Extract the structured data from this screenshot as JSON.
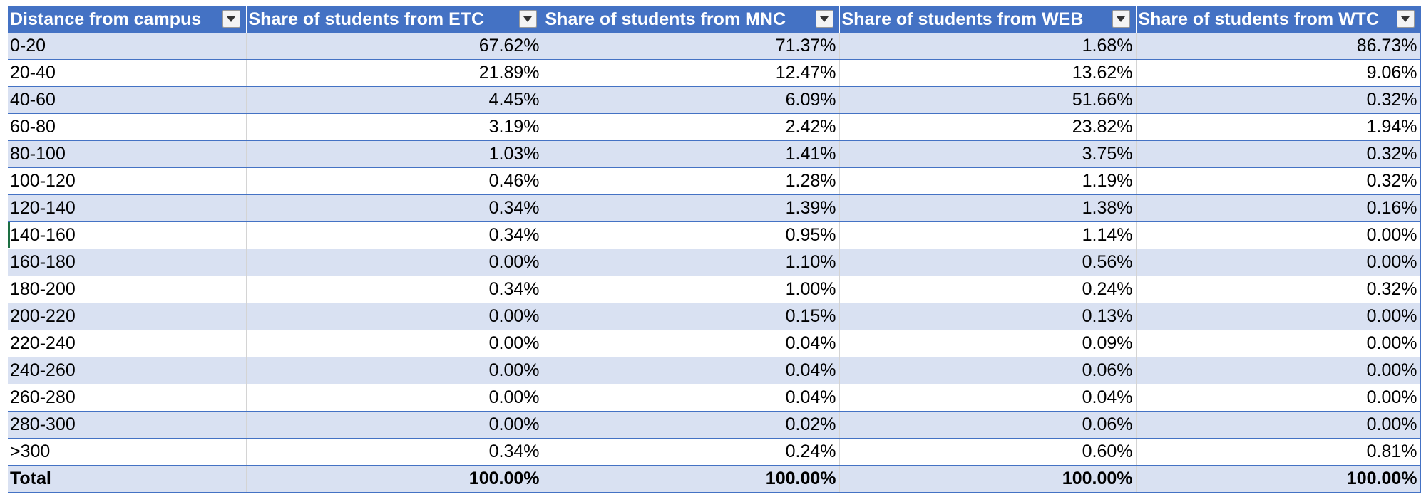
{
  "table": {
    "headers": [
      "Distance from campus",
      "Share of students from ETC",
      "Share of students from MNC",
      "Share of students from WEB",
      "Share of students from WTC"
    ],
    "rows": [
      {
        "label": "0-20",
        "values": [
          "67.62%",
          "71.37%",
          "1.68%",
          "86.73%"
        ]
      },
      {
        "label": "20-40",
        "values": [
          "21.89%",
          "12.47%",
          "13.62%",
          "9.06%"
        ]
      },
      {
        "label": "40-60",
        "values": [
          "4.45%",
          "6.09%",
          "51.66%",
          "0.32%"
        ]
      },
      {
        "label": "60-80",
        "values": [
          "3.19%",
          "2.42%",
          "23.82%",
          "1.94%"
        ]
      },
      {
        "label": "80-100",
        "values": [
          "1.03%",
          "1.41%",
          "3.75%",
          "0.32%"
        ]
      },
      {
        "label": "100-120",
        "values": [
          "0.46%",
          "1.28%",
          "1.19%",
          "0.32%"
        ]
      },
      {
        "label": "120-140",
        "values": [
          "0.34%",
          "1.39%",
          "1.38%",
          "0.16%"
        ]
      },
      {
        "label": "140-160",
        "values": [
          "0.34%",
          "0.95%",
          "1.14%",
          "0.00%"
        ]
      },
      {
        "label": "160-180",
        "values": [
          "0.00%",
          "1.10%",
          "0.56%",
          "0.00%"
        ]
      },
      {
        "label": "180-200",
        "values": [
          "0.34%",
          "1.00%",
          "0.24%",
          "0.32%"
        ]
      },
      {
        "label": "200-220",
        "values": [
          "0.00%",
          "0.15%",
          "0.13%",
          "0.00%"
        ]
      },
      {
        "label": "220-240",
        "values": [
          "0.00%",
          "0.04%",
          "0.09%",
          "0.00%"
        ]
      },
      {
        "label": "240-260",
        "values": [
          "0.00%",
          "0.04%",
          "0.06%",
          "0.00%"
        ]
      },
      {
        "label": "260-280",
        "values": [
          "0.00%",
          "0.04%",
          "0.04%",
          "0.00%"
        ]
      },
      {
        "label": "280-300",
        "values": [
          "0.00%",
          "0.02%",
          "0.06%",
          "0.00%"
        ]
      },
      {
        "label": ">300",
        "values": [
          "0.34%",
          "0.24%",
          "0.60%",
          "0.81%"
        ]
      }
    ],
    "total": {
      "label": "Total",
      "values": [
        "100.00%",
        "100.00%",
        "100.00%",
        "100.00%"
      ]
    }
  },
  "colors": {
    "header_bg": "#4472c4",
    "band_bg": "#d9e1f2",
    "border": "#4472c4",
    "selection": "#1d6f42"
  },
  "icons": {
    "filter": "filter-dropdown-icon"
  }
}
